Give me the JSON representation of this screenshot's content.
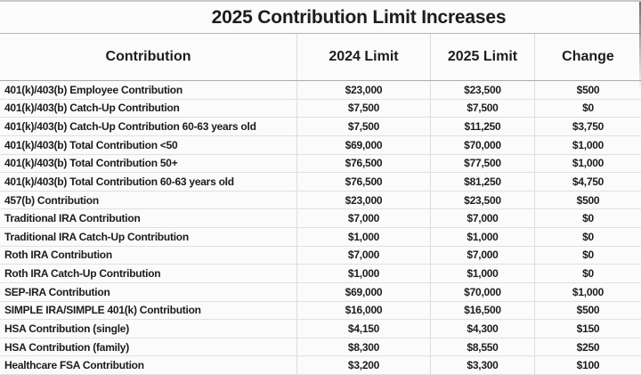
{
  "title": "2025 Contribution Limit Increases",
  "table": {
    "columns": [
      "Contribution",
      "2024 Limit",
      "2025 Limit",
      "Change"
    ]
  },
  "chart_data": {
    "type": "table",
    "title": "2025 Contribution Limit Increases",
    "columns": [
      "Contribution",
      "2024 Limit",
      "2025 Limit",
      "Change"
    ],
    "rows": [
      [
        "401(k)/403(b) Employee Contribution",
        "$23,000",
        "$23,500",
        "$500"
      ],
      [
        "401(k)/403(b) Catch-Up Contribution",
        "$7,500",
        "$7,500",
        "$0"
      ],
      [
        "401(k)/403(b) Catch-Up Contribution 60-63 years old",
        "$7,500",
        "$11,250",
        "$3,750"
      ],
      [
        "401(k)/403(b) Total Contribution <50",
        "$69,000",
        "$70,000",
        "$1,000"
      ],
      [
        "401(k)/403(b) Total Contribution 50+",
        "$76,500",
        "$77,500",
        "$1,000"
      ],
      [
        "401(k)/403(b) Total Contribution 60-63 years old",
        "$76,500",
        "$81,250",
        "$4,750"
      ],
      [
        "457(b) Contribution",
        "$23,000",
        "$23,500",
        "$500"
      ],
      [
        "Traditional IRA Contribution",
        "$7,000",
        "$7,000",
        "$0"
      ],
      [
        "Traditional IRA Catch-Up Contribution",
        "$1,000",
        "$1,000",
        "$0"
      ],
      [
        "Roth IRA Contribution",
        "$7,000",
        "$7,000",
        "$0"
      ],
      [
        "Roth IRA Catch-Up Contribution",
        "$1,000",
        "$1,000",
        "$0"
      ],
      [
        "SEP-IRA Contribution",
        "$69,000",
        "$70,000",
        "$1,000"
      ],
      [
        "SIMPLE IRA/SIMPLE 401(k) Contribution",
        "$16,000",
        "$16,500",
        "$500"
      ],
      [
        "HSA Contribution (single)",
        "$4,150",
        "$4,300",
        "$150"
      ],
      [
        "HSA Contribution (family)",
        "$8,300",
        "$8,550",
        "$250"
      ],
      [
        "Healthcare FSA Contribution",
        "$3,200",
        "$3,300",
        "$100"
      ]
    ]
  },
  "colors": {
    "text": "#1c1c1c",
    "background": "#fbfbfb",
    "grid_light": "#e0e0e0",
    "grid_column": "#dcdcdc",
    "grid_heavy": "#ababab",
    "top_edge": "#c9c9c9"
  }
}
